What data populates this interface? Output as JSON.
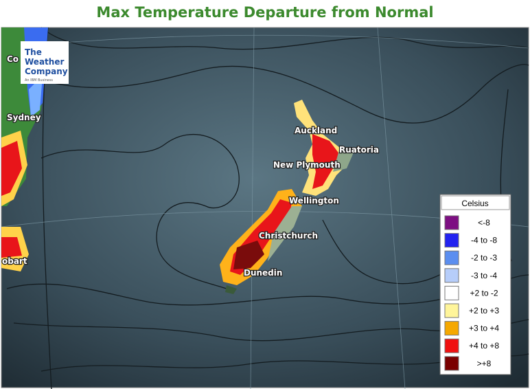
{
  "header": {
    "title": "Max Temperature Departure from Normal"
  },
  "logo": {
    "line1": "The",
    "line2": "Weather",
    "line3": "Company",
    "tagline": "An IBM Business"
  },
  "cities": [
    {
      "label": "Co"
    },
    {
      "label": "Sydney"
    },
    {
      "label": "obart"
    },
    {
      "label": "Auckland"
    },
    {
      "label": "Ruatoria"
    },
    {
      "label": "New Plymouth"
    },
    {
      "label": "Wellington"
    },
    {
      "label": "Christchurch"
    },
    {
      "label": "Dunedin"
    }
  ],
  "legend": {
    "title": "Celsius",
    "items": [
      {
        "label": "<-8",
        "color": "#7d0f82"
      },
      {
        "label": "-4 to -8",
        "color": "#2222f0"
      },
      {
        "label": "-2 to -3",
        "color": "#5b8ef0"
      },
      {
        "label": "-3 to -4",
        "color": "#b6cdfa"
      },
      {
        "label": "+2 to -2",
        "color": "#ffffff"
      },
      {
        "label": "+2 to +3",
        "color": "#fff59a"
      },
      {
        "label": "+3 to +4",
        "color": "#f5a800"
      },
      {
        "label": "+4 to +8",
        "color": "#f01010"
      },
      {
        "label": ">+8",
        "color": "#7a0000"
      }
    ]
  }
}
